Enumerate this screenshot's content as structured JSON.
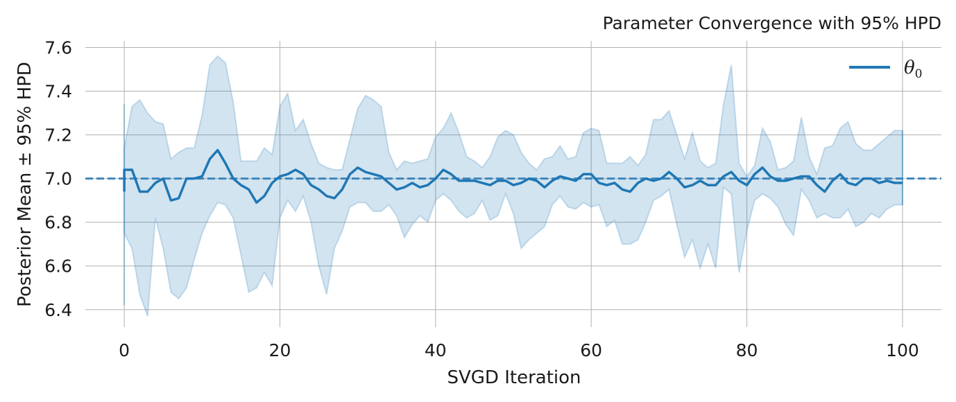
{
  "chart_data": {
    "type": "line",
    "title": "Parameter Convergence with 95% HPD",
    "xlabel": "SVGD Iteration",
    "ylabel": "Posterior Mean ± 95% HPD",
    "xlim": [
      -5,
      105
    ],
    "ylim": [
      6.32,
      7.63
    ],
    "xticks": [
      0,
      20,
      40,
      60,
      80,
      100
    ],
    "yticks": [
      6.4,
      6.6,
      6.8,
      7.0,
      7.2,
      7.4,
      7.6
    ],
    "xtick_labels": [
      "0",
      "20",
      "40",
      "60",
      "80",
      "100"
    ],
    "ytick_labels": [
      "6.4",
      "6.6",
      "6.8",
      "7.0",
      "7.2",
      "7.4",
      "7.6"
    ],
    "grid": true,
    "legend_position": "top-right",
    "reference_line": {
      "y": 7.0,
      "style": "dashed",
      "color": "#3d86bd"
    },
    "colors": {
      "line": "#1f77b4",
      "band": "#1f77b4"
    },
    "series": [
      {
        "name": "θ0",
        "legend_symbol": "θ",
        "legend_subscript": "0",
        "x": [
          0,
          1,
          2,
          3,
          4,
          5,
          6,
          7,
          8,
          9,
          10,
          11,
          12,
          13,
          14,
          15,
          16,
          17,
          18,
          19,
          20,
          21,
          22,
          23,
          24,
          25,
          26,
          27,
          28,
          29,
          30,
          31,
          32,
          33,
          34,
          35,
          36,
          37,
          38,
          39,
          40,
          41,
          42,
          43,
          44,
          45,
          46,
          47,
          48,
          49,
          50,
          51,
          52,
          53,
          54,
          55,
          56,
          57,
          58,
          59,
          60,
          61,
          62,
          63,
          64,
          65,
          66,
          67,
          68,
          69,
          70,
          71,
          72,
          73,
          74,
          75,
          76,
          77,
          78,
          79,
          80,
          81,
          82,
          83,
          84,
          85,
          86,
          87,
          88,
          89,
          90,
          91,
          92,
          93,
          94,
          95,
          96,
          97,
          98,
          99,
          100
        ],
        "mean": [
          7.04,
          7.04,
          6.94,
          6.94,
          6.98,
          7.0,
          6.9,
          6.91,
          7.0,
          7.0,
          7.01,
          7.09,
          7.13,
          7.07,
          7.0,
          6.97,
          6.95,
          6.89,
          6.92,
          6.98,
          7.01,
          7.02,
          7.04,
          7.02,
          6.97,
          6.95,
          6.92,
          6.91,
          6.95,
          7.02,
          7.05,
          7.03,
          7.02,
          7.01,
          6.98,
          6.95,
          6.96,
          6.98,
          6.96,
          6.97,
          7.0,
          7.04,
          7.02,
          6.99,
          6.99,
          6.99,
          6.98,
          6.97,
          6.99,
          6.99,
          6.97,
          6.98,
          7.0,
          6.99,
          6.96,
          6.99,
          7.01,
          7.0,
          6.99,
          7.02,
          7.02,
          6.98,
          6.97,
          6.98,
          6.95,
          6.94,
          6.98,
          7.0,
          6.99,
          7.0,
          7.03,
          7.0,
          6.96,
          6.97,
          6.99,
          6.97,
          6.97,
          7.01,
          7.03,
          6.99,
          6.97,
          7.02,
          7.05,
          7.01,
          6.99,
          6.99,
          7.0,
          7.01,
          7.01,
          6.97,
          6.94,
          6.99,
          7.02,
          6.98,
          6.97,
          7.0,
          7.0,
          6.98,
          6.99,
          6.98,
          6.98
        ],
        "upper": [
          7.14,
          7.33,
          7.36,
          7.3,
          7.26,
          7.25,
          7.09,
          7.12,
          7.14,
          7.14,
          7.29,
          7.52,
          7.56,
          7.53,
          7.35,
          7.08,
          7.08,
          7.08,
          7.14,
          7.11,
          7.33,
          7.39,
          7.22,
          7.27,
          7.16,
          7.07,
          7.05,
          7.04,
          7.04,
          7.18,
          7.32,
          7.38,
          7.36,
          7.33,
          7.12,
          7.04,
          7.08,
          7.07,
          7.08,
          7.09,
          7.19,
          7.23,
          7.3,
          7.21,
          7.1,
          7.08,
          7.05,
          7.1,
          7.19,
          7.22,
          7.2,
          7.12,
          7.07,
          7.04,
          7.09,
          7.1,
          7.15,
          7.09,
          7.1,
          7.21,
          7.23,
          7.22,
          7.07,
          7.07,
          7.07,
          7.1,
          7.06,
          7.11,
          7.27,
          7.27,
          7.31,
          7.2,
          7.09,
          7.21,
          7.08,
          7.05,
          7.07,
          7.34,
          7.52,
          7.07,
          7.01,
          7.06,
          7.23,
          7.17,
          7.04,
          7.05,
          7.08,
          7.28,
          7.1,
          7.02,
          7.14,
          7.15,
          7.23,
          7.26,
          7.16,
          7.13,
          7.13,
          7.16,
          7.19,
          7.22,
          7.22
        ],
        "lower": [
          6.75,
          6.68,
          6.47,
          6.37,
          6.82,
          6.68,
          6.48,
          6.45,
          6.5,
          6.63,
          6.75,
          6.83,
          6.89,
          6.88,
          6.82,
          6.65,
          6.48,
          6.5,
          6.57,
          6.51,
          6.82,
          6.9,
          6.85,
          6.92,
          6.8,
          6.6,
          6.47,
          6.68,
          6.76,
          6.87,
          6.89,
          6.89,
          6.85,
          6.85,
          6.88,
          6.83,
          6.73,
          6.79,
          6.83,
          6.8,
          6.9,
          6.93,
          6.9,
          6.85,
          6.82,
          6.84,
          6.9,
          6.81,
          6.83,
          6.93,
          6.84,
          6.68,
          6.72,
          6.75,
          6.78,
          6.88,
          6.92,
          6.87,
          6.86,
          6.89,
          6.87,
          6.88,
          6.78,
          6.81,
          6.7,
          6.7,
          6.72,
          6.8,
          6.9,
          6.92,
          6.95,
          6.79,
          6.64,
          6.72,
          6.59,
          6.7,
          6.59,
          6.96,
          6.93,
          6.57,
          6.76,
          6.9,
          6.93,
          6.91,
          6.87,
          6.79,
          6.74,
          6.95,
          6.9,
          6.82,
          6.84,
          6.82,
          6.82,
          6.86,
          6.78,
          6.8,
          6.84,
          6.82,
          6.86,
          6.88,
          6.88
        ]
      }
    ],
    "initial_spike": {
      "x": 0,
      "y_min": 6.42,
      "y_max": 7.34
    }
  }
}
